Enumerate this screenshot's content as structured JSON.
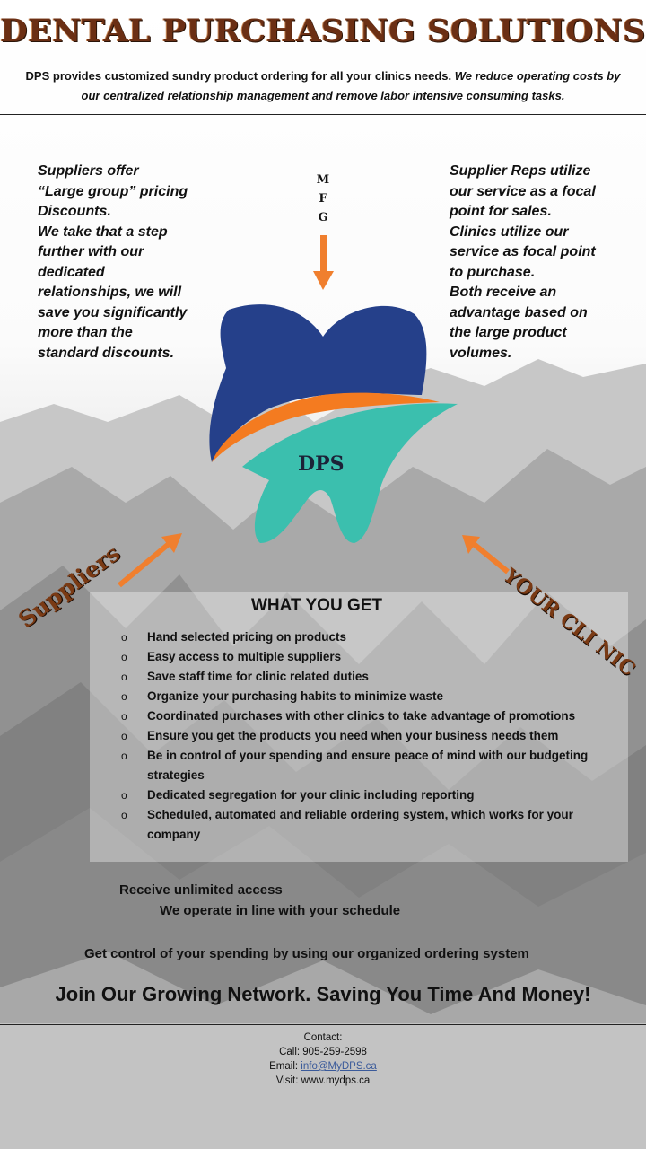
{
  "header": {
    "title": "DENTAL PURCHASING SOLUTIONS",
    "intro_plain": "DPS provides customized sundry product ordering for all your clinics needs.",
    "intro_italic": "We reduce operating costs by our centralized relationship management and remove labor intensive consuming tasks."
  },
  "left_column": [
    "Suppliers  offer",
    "“Large group”  pricing",
    "Discounts.",
    "We take that a step",
    "further with our",
    "dedicated",
    "relationships, we will",
    "save you significantly",
    "more than the",
    "standard discounts."
  ],
  "right_column": [
    "Supplier Reps utilize",
    "our service as a focal",
    "point for sales.",
    "Clinics utilize our",
    "service as focal point",
    "to purchase.",
    "Both receive an",
    "advantage based on",
    "the large product",
    "volumes."
  ],
  "diagram": {
    "mfg_letters": [
      "M",
      "F",
      "G"
    ],
    "logo_text": "DPS",
    "suppliers_label": "Suppliers",
    "clinic_label": "YOUR CLI NIC",
    "colors": {
      "arrow": "#f07f2e",
      "tooth_blue": "#25408a",
      "tooth_teal": "#3bbfae",
      "accent_orange": "#f47b20"
    }
  },
  "benefits": {
    "heading": "WHAT YOU GET",
    "items": [
      "Hand selected pricing on products",
      "Easy access to multiple suppliers",
      "Save staff time for clinic related duties",
      "Organize your purchasing habits to minimize waste",
      "Coordinated purchases with other clinics to take advantage of promotions",
      "Ensure you get the products you need when your business needs them",
      "Be in control of your spending and ensure peace of mind with our budgeting strategies",
      "Dedicated segregation for your clinic including reporting",
      "Scheduled, automated and reliable ordering system, which works for your company"
    ]
  },
  "closing": {
    "access": "Receive unlimited access",
    "schedule": "We operate in line with your schedule",
    "control": "Get control of your spending by using our organized ordering system",
    "join": "Join Our Growing Network. Saving You Time And Money!"
  },
  "contact": {
    "heading": "Contact:",
    "call": "Call: 905-259-2598",
    "email_label": "Email: ",
    "email": "info@MyDPS.ca",
    "visit": "Visit: www.mydps.ca"
  }
}
